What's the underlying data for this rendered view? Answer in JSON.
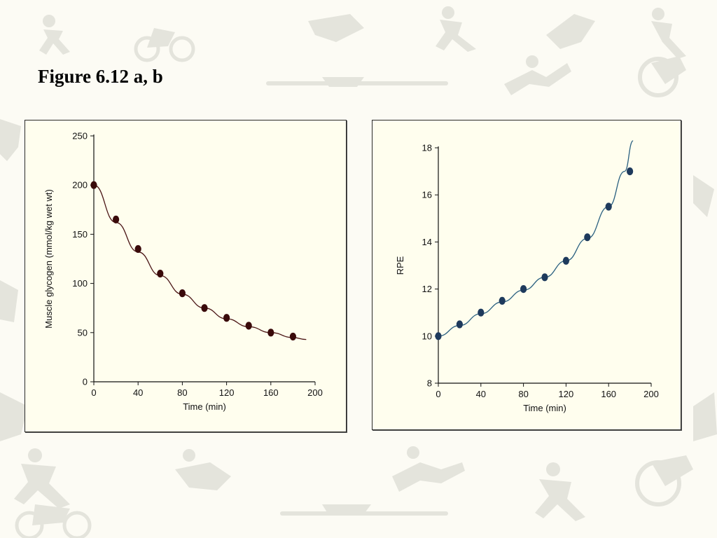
{
  "slide": {
    "title": "Figure 6.12 a, b",
    "background_color": "#fcfbf4",
    "watermark": "faint sports silhouettes (cyclists, runners, rowers, jumpers)"
  },
  "chart_data": [
    {
      "type": "scatter",
      "title": "",
      "xlabel": "Time (min)",
      "ylabel": "Muscle glycogen (mmol/kg wet wt)",
      "xlim": [
        0,
        200
      ],
      "ylim": [
        0,
        250
      ],
      "xticks": [
        0,
        40,
        80,
        120,
        160,
        200
      ],
      "yticks": [
        0,
        50,
        100,
        150,
        200,
        250
      ],
      "grid": false,
      "marker_color": "#3a0a0a",
      "line_color": "#4a1414",
      "series": [
        {
          "x": [
            0,
            20,
            40,
            60,
            80,
            100,
            120,
            140,
            160,
            180
          ],
          "values": [
            200,
            165,
            135,
            110,
            90,
            75,
            65,
            57,
            50,
            46
          ]
        }
      ],
      "fit_curve": {
        "x": [
          0,
          20,
          40,
          60,
          80,
          100,
          120,
          140,
          160,
          180,
          192
        ],
        "values": [
          200,
          162,
          132,
          108,
          89,
          75,
          64,
          56,
          50,
          45,
          43
        ]
      }
    },
    {
      "type": "scatter",
      "title": "",
      "xlabel": "Time (min)",
      "ylabel": "RPE",
      "xlim": [
        0,
        200
      ],
      "ylim": [
        8,
        18
      ],
      "xticks": [
        0,
        40,
        80,
        120,
        160,
        200
      ],
      "yticks": [
        8,
        10,
        12,
        14,
        16,
        18
      ],
      "grid": false,
      "marker_color": "#1e3a5c",
      "line_color": "#2a6080",
      "series": [
        {
          "x": [
            0,
            20,
            40,
            60,
            80,
            100,
            120,
            140,
            160,
            180
          ],
          "values": [
            10,
            10.5,
            11,
            11.5,
            12,
            12.5,
            13.2,
            14.2,
            15.5,
            17
          ]
        }
      ],
      "fit_curve": {
        "x": [
          0,
          20,
          40,
          60,
          80,
          100,
          120,
          140,
          160,
          175,
          183
        ],
        "values": [
          10,
          10.45,
          10.95,
          11.45,
          11.95,
          12.5,
          13.2,
          14.15,
          15.5,
          17.0,
          18.3
        ]
      }
    }
  ]
}
